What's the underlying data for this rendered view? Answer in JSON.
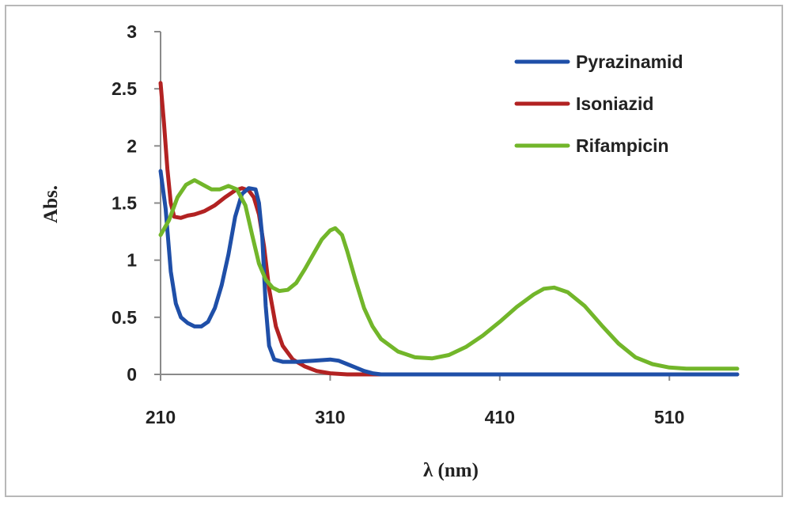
{
  "chart_data": {
    "type": "line",
    "xlabel": "λ (nm)",
    "ylabel": "Abs.",
    "xlim": [
      210,
      550
    ],
    "ylim": [
      0,
      3
    ],
    "x_ticks": [
      "210",
      "310",
      "410",
      "510"
    ],
    "y_ticks": [
      "0",
      "0.5",
      "1",
      "1.5",
      "2",
      "2.5",
      "3"
    ],
    "grid": false,
    "legend_position": "top-right",
    "series": [
      {
        "name": "Pyrazinamid",
        "color": "#1f4fa8",
        "points": [
          [
            210,
            1.78
          ],
          [
            213,
            1.45
          ],
          [
            216,
            0.9
          ],
          [
            219,
            0.62
          ],
          [
            222,
            0.5
          ],
          [
            226,
            0.45
          ],
          [
            230,
            0.42
          ],
          [
            234,
            0.42
          ],
          [
            238,
            0.46
          ],
          [
            242,
            0.58
          ],
          [
            246,
            0.78
          ],
          [
            250,
            1.05
          ],
          [
            254,
            1.38
          ],
          [
            258,
            1.58
          ],
          [
            262,
            1.63
          ],
          [
            266,
            1.62
          ],
          [
            268,
            1.5
          ],
          [
            270,
            1.2
          ],
          [
            272,
            0.6
          ],
          [
            274,
            0.25
          ],
          [
            277,
            0.13
          ],
          [
            282,
            0.11
          ],
          [
            290,
            0.11
          ],
          [
            300,
            0.12
          ],
          [
            310,
            0.13
          ],
          [
            315,
            0.12
          ],
          [
            320,
            0.09
          ],
          [
            325,
            0.06
          ],
          [
            330,
            0.03
          ],
          [
            335,
            0.01
          ],
          [
            340,
            0.0
          ],
          [
            550,
            0.0
          ]
        ]
      },
      {
        "name": "Isoniazid",
        "color": "#b22222",
        "points": [
          [
            210,
            2.55
          ],
          [
            212,
            2.2
          ],
          [
            214,
            1.8
          ],
          [
            216,
            1.5
          ],
          [
            218,
            1.38
          ],
          [
            222,
            1.37
          ],
          [
            226,
            1.39
          ],
          [
            230,
            1.4
          ],
          [
            236,
            1.43
          ],
          [
            242,
            1.48
          ],
          [
            248,
            1.55
          ],
          [
            254,
            1.61
          ],
          [
            258,
            1.63
          ],
          [
            262,
            1.61
          ],
          [
            265,
            1.55
          ],
          [
            268,
            1.4
          ],
          [
            271,
            1.12
          ],
          [
            274,
            0.75
          ],
          [
            278,
            0.42
          ],
          [
            282,
            0.25
          ],
          [
            288,
            0.13
          ],
          [
            295,
            0.07
          ],
          [
            302,
            0.03
          ],
          [
            310,
            0.01
          ],
          [
            320,
            0.0
          ],
          [
            550,
            0.0
          ]
        ]
      },
      {
        "name": "Rifampicin",
        "color": "#72b62a",
        "points": [
          [
            210,
            1.22
          ],
          [
            215,
            1.35
          ],
          [
            220,
            1.55
          ],
          [
            225,
            1.66
          ],
          [
            230,
            1.7
          ],
          [
            235,
            1.66
          ],
          [
            240,
            1.62
          ],
          [
            245,
            1.62
          ],
          [
            250,
            1.65
          ],
          [
            255,
            1.62
          ],
          [
            260,
            1.48
          ],
          [
            264,
            1.22
          ],
          [
            268,
            0.97
          ],
          [
            272,
            0.83
          ],
          [
            276,
            0.76
          ],
          [
            280,
            0.73
          ],
          [
            285,
            0.74
          ],
          [
            290,
            0.8
          ],
          [
            295,
            0.92
          ],
          [
            300,
            1.05
          ],
          [
            305,
            1.18
          ],
          [
            310,
            1.26
          ],
          [
            313,
            1.28
          ],
          [
            317,
            1.22
          ],
          [
            320,
            1.08
          ],
          [
            325,
            0.82
          ],
          [
            330,
            0.58
          ],
          [
            335,
            0.42
          ],
          [
            340,
            0.31
          ],
          [
            350,
            0.2
          ],
          [
            360,
            0.15
          ],
          [
            370,
            0.14
          ],
          [
            380,
            0.17
          ],
          [
            390,
            0.24
          ],
          [
            400,
            0.34
          ],
          [
            410,
            0.46
          ],
          [
            420,
            0.59
          ],
          [
            430,
            0.7
          ],
          [
            436,
            0.75
          ],
          [
            442,
            0.76
          ],
          [
            450,
            0.72
          ],
          [
            460,
            0.6
          ],
          [
            470,
            0.43
          ],
          [
            480,
            0.27
          ],
          [
            490,
            0.15
          ],
          [
            500,
            0.09
          ],
          [
            510,
            0.06
          ],
          [
            520,
            0.05
          ],
          [
            550,
            0.05
          ]
        ]
      }
    ]
  }
}
